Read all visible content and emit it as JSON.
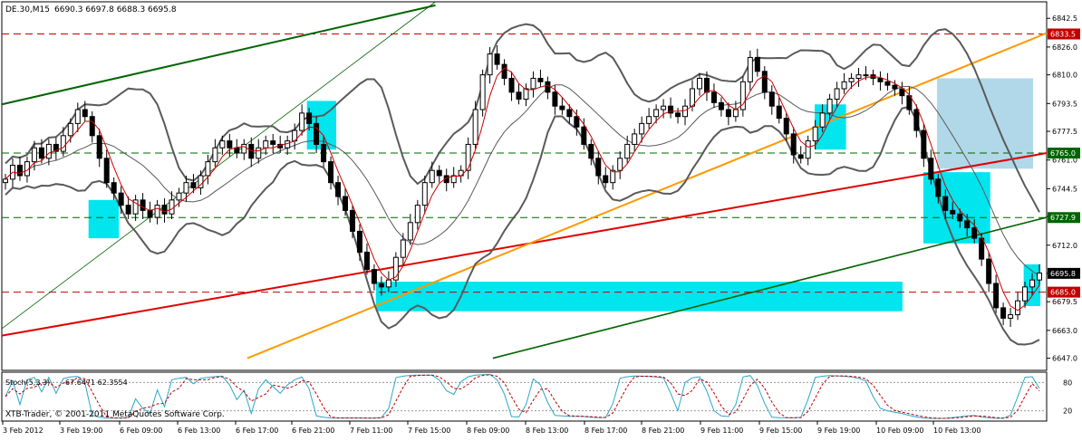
{
  "chart_data": {
    "type": "candlestick",
    "symbol_label": "DE.30,M15",
    "ohlc_label": "6690.3 6697.8 6688.3 6695.8",
    "price_axis": {
      "range": [
        6640,
        6852
      ],
      "ticks": [
        6842.5,
        6826.0,
        6810.0,
        6793.5,
        6777.5,
        6761.0,
        6744.5,
        6728.5,
        6712.0,
        6695.8,
        6679.5,
        6663.0,
        6647.0
      ],
      "tick_labels": [
        "6842.5",
        "6826.0",
        "6810.0",
        "6793.5",
        "6777.5",
        "6761.0",
        "6744.5",
        "6728.5",
        "6712.0",
        "6695.8",
        "6679.5",
        "6663.0",
        "6647.0"
      ]
    },
    "time_axis": {
      "labels": [
        "3 Feb 2012",
        "3 Feb 19:00",
        "6 Feb 09:00",
        "6 Feb 13:00",
        "6 Feb 17:00",
        "6 Feb 21:00",
        "7 Feb 11:00",
        "7 Feb 15:00",
        "8 Feb 09:00",
        "8 Feb 13:00",
        "8 Feb 17:00",
        "8 Feb 21:00",
        "9 Feb 11:00",
        "9 Feb 15:00",
        "9 Feb 19:00",
        "10 Feb 09:00",
        "10 Feb 13:00"
      ]
    },
    "price_levels": [
      {
        "value": 6833.5,
        "label": "6833.5",
        "color": "#c00000",
        "style": "dashed"
      },
      {
        "value": 6765.0,
        "label": "6765.0",
        "color": "#006400",
        "style": "dashed"
      },
      {
        "value": 6727.9,
        "label": "6727.9",
        "color": "#006400",
        "style": "dashed"
      },
      {
        "value": 6685.0,
        "label": "6685.0",
        "color": "#c00000",
        "style": "dashed"
      }
    ],
    "current_price": {
      "value": 6695.8,
      "label": "6695.8"
    },
    "close": [
      6750,
      6758,
      6752,
      6760,
      6768,
      6762,
      6770,
      6766,
      6775,
      6782,
      6790,
      6786,
      6775,
      6762,
      6748,
      6742,
      6735,
      6730,
      6738,
      6732,
      6728,
      6735,
      6730,
      6738,
      6742,
      6748,
      6745,
      6752,
      6760,
      6768,
      6772,
      6768,
      6765,
      6770,
      6762,
      6768,
      6772,
      6770,
      6768,
      6772,
      6778,
      6788,
      6782,
      6770,
      6760,
      6748,
      6740,
      6732,
      6720,
      6708,
      6698,
      6690,
      6688,
      6692,
      6705,
      6715,
      6725,
      6735,
      6748,
      6755,
      6752,
      6748,
      6752,
      6755,
      6770,
      6790,
      6810,
      6822,
      6816,
      6808,
      6800,
      6796,
      6802,
      6808,
      6806,
      6800,
      6792,
      6790,
      6786,
      6780,
      6770,
      6762,
      6752,
      6748,
      6755,
      6762,
      6770,
      6776,
      6782,
      6786,
      6790,
      6792,
      6788,
      6786,
      6792,
      6802,
      6808,
      6800,
      6794,
      6790,
      6786,
      6790,
      6806,
      6820,
      6812,
      6800,
      6792,
      6785,
      6776,
      6764,
      6762,
      6772,
      6780,
      6788,
      6796,
      6802,
      6806,
      6808,
      6810,
      6810,
      6808,
      6806,
      6804,
      6802,
      6798,
      6790,
      6778,
      6762,
      6750,
      6740,
      6732,
      6730,
      6726,
      6722,
      6716,
      6704,
      6690,
      6676,
      6670,
      6672,
      6680,
      6688,
      6692,
      6696
    ],
    "indicator": {
      "name": "Stoch(5,3,3)",
      "values_label": "67.6471 62.3554",
      "main": 67.6471,
      "signal": 62.3554,
      "range": [
        0,
        100
      ],
      "levels": [
        80,
        20
      ],
      "level_labels": [
        "80",
        "20"
      ]
    },
    "footer": "XTB-Trader, © 2001-2011 MetaQuotes Software Corp.",
    "colors": {
      "upper_band": "#5a5a5a",
      "fast_ma": "#d00000",
      "orange_trend": "#ff9900",
      "red_trend": "#e00000",
      "green_trend": "#006400",
      "zone": "#00e5ee",
      "zone_light": "#a8d4e6",
      "stoch_main": "#2aa7c9",
      "stoch_signal": "#c00000"
    }
  }
}
